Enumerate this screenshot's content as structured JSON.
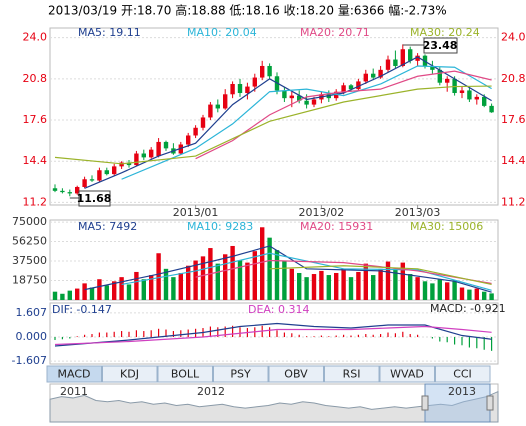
{
  "header": "2013/03/19 开:18.70 高:18.88 低:18.16 收:18.20 量:6366 幅:-2.73%",
  "annotations": [
    "23.48",
    "11.68"
  ],
  "tabs": [
    "MACD",
    "KDJ",
    "BOLL",
    "PSY",
    "OBV",
    "RSI",
    "WVAD",
    "CCI"
  ],
  "navigator": {
    "labels": [
      "2011",
      "2012",
      "2013"
    ],
    "ylim": [
      0,
      30
    ],
    "values": [
      18,
      20,
      19,
      21,
      17,
      16,
      17,
      15,
      16,
      14,
      15,
      13,
      14,
      12,
      13,
      14,
      12,
      11,
      12,
      13,
      15,
      14,
      16,
      15,
      13,
      12,
      11,
      12,
      10,
      11,
      12,
      11,
      12,
      13,
      14,
      13,
      16,
      18,
      20,
      24
    ]
  },
  "chart_data": [
    {
      "type": "candlestick",
      "up_color": "#e60012",
      "down_color": "#00a03c",
      "grid": true,
      "ylim": [
        11,
        24.75
      ],
      "yticks": [
        {
          "value": 24,
          "label": "24.0"
        },
        20.8,
        17.6,
        14.4,
        11.2
      ],
      "categories": [
        null,
        null,
        null,
        null,
        null,
        null,
        null,
        null,
        null,
        null,
        null,
        null,
        null,
        null,
        null,
        null,
        null,
        null,
        null,
        "2013/01",
        null,
        null,
        null,
        null,
        null,
        null,
        null,
        null,
        null,
        null,
        null,
        null,
        null,
        null,
        null,
        null,
        "2013/02",
        null,
        null,
        null,
        null,
        null,
        null,
        null,
        null,
        null,
        null,
        null,
        null,
        "2013/03",
        null,
        null,
        null,
        null,
        null,
        null,
        null,
        null,
        null,
        null
      ],
      "open": [
        12.3,
        12.1,
        12.0,
        11.9,
        12.4,
        13.0,
        12.9,
        13.7,
        13.4,
        14.0,
        14.3,
        14.1,
        15.0,
        14.7,
        14.8,
        15.9,
        15.4,
        15.0,
        15.7,
        16.4,
        17.0,
        17.8,
        18.8,
        18.5,
        19.6,
        20.4,
        19.7,
        20.2,
        20.9,
        21.8,
        21.0,
        19.9,
        19.3,
        19.5,
        19.1,
        18.8,
        19.2,
        19.6,
        19.3,
        19.8,
        20.3,
        20.0,
        20.6,
        21.2,
        20.9,
        21.5,
        22.3,
        21.8,
        23.1,
        22.2,
        22.6,
        21.8,
        21.5,
        20.5,
        20.8,
        19.7,
        19.9,
        19.2,
        19.4,
        18.7
      ],
      "high": [
        12.6,
        12.3,
        12.2,
        12.5,
        13.2,
        13.3,
        13.9,
        13.9,
        14.2,
        14.4,
        14.5,
        15.2,
        15.3,
        15.5,
        16.2,
        16.0,
        15.8,
        15.9,
        16.6,
        17.2,
        18.0,
        19.0,
        19.2,
        20.0,
        20.6,
        20.8,
        20.5,
        21.2,
        22.2,
        22.0,
        21.3,
        20.2,
        19.8,
        19.9,
        19.6,
        19.4,
        19.8,
        19.9,
        20.0,
        20.5,
        20.4,
        20.8,
        21.5,
        21.6,
        21.8,
        22.6,
        23.0,
        23.48,
        23.3,
        22.8,
        22.7,
        22.2,
        21.7,
        21.0,
        21.0,
        20.2,
        20.1,
        19.6,
        19.6,
        18.88
      ],
      "low": [
        12.0,
        11.9,
        11.68,
        11.8,
        12.3,
        12.8,
        12.8,
        13.3,
        13.3,
        13.8,
        13.9,
        14.0,
        14.5,
        14.6,
        14.7,
        15.2,
        14.9,
        14.9,
        15.5,
        16.2,
        16.8,
        17.6,
        18.2,
        18.4,
        19.3,
        19.4,
        19.2,
        19.8,
        20.7,
        20.8,
        19.6,
        19.0,
        18.6,
        18.9,
        18.5,
        18.6,
        18.9,
        19.0,
        19.1,
        19.6,
        19.8,
        19.9,
        20.4,
        20.7,
        20.8,
        21.3,
        21.6,
        21.7,
        22.0,
        21.8,
        21.6,
        21.2,
        20.3,
        19.8,
        19.5,
        19.3,
        19.0,
        18.8,
        18.6,
        18.16
      ],
      "close": [
        12.1,
        12.0,
        11.9,
        12.4,
        13.0,
        12.9,
        13.7,
        13.4,
        14.0,
        14.3,
        14.1,
        15.0,
        14.7,
        15.3,
        15.9,
        15.4,
        15.0,
        15.7,
        16.4,
        17.0,
        17.8,
        18.8,
        18.5,
        19.6,
        20.4,
        19.7,
        20.2,
        20.9,
        21.8,
        21.0,
        19.9,
        19.3,
        19.5,
        19.1,
        18.8,
        19.2,
        19.6,
        19.3,
        19.8,
        20.3,
        20.0,
        20.6,
        21.2,
        20.9,
        21.5,
        22.3,
        21.8,
        23.1,
        22.2,
        22.6,
        21.8,
        21.5,
        20.5,
        20.8,
        19.7,
        19.9,
        19.2,
        19.4,
        18.7,
        18.2
      ],
      "series": [
        {
          "name": "MA5: 19.11",
          "color": "#1f3f8f",
          "x": [
            4,
            9,
            14,
            19,
            24,
            29,
            34,
            39,
            44,
            49,
            54,
            59
          ],
          "values": [
            12.3,
            13.5,
            14.8,
            15.8,
            18.8,
            20.8,
            19.2,
            19.7,
            21.0,
            22.5,
            20.8,
            19.11
          ]
        },
        {
          "name": "MA10: 20.04",
          "color": "#2cb5d8",
          "x": [
            9,
            14,
            19,
            24,
            29,
            34,
            39,
            44,
            49,
            54,
            59
          ],
          "values": [
            13.0,
            14.2,
            15.4,
            17.3,
            19.8,
            20.0,
            19.5,
            20.4,
            21.8,
            21.7,
            20.04
          ]
        },
        {
          "name": "MA20: 20.71",
          "color": "#e04a86",
          "x": [
            19,
            24,
            29,
            34,
            39,
            44,
            49,
            54,
            59
          ],
          "values": [
            14.6,
            16.0,
            18.0,
            19.4,
            19.8,
            20.0,
            21.0,
            21.4,
            20.71
          ]
        },
        {
          "name": "MA30: 20.24",
          "color": "#9bb32a",
          "x": [
            0,
            9,
            19,
            29,
            39,
            49,
            54,
            59
          ],
          "values": [
            14.7,
            14.2,
            14.8,
            17.5,
            19.0,
            20.0,
            20.2,
            20.24
          ]
        }
      ]
    },
    {
      "type": "bar",
      "grid": true,
      "ylim": [
        0,
        77000
      ],
      "yticks": [
        75000,
        56250,
        37500,
        18750
      ],
      "values": [
        8000,
        6000,
        9000,
        11000,
        16000,
        12000,
        20000,
        14000,
        18000,
        22000,
        15000,
        27000,
        20000,
        24000,
        45000,
        30000,
        22000,
        26000,
        33000,
        38000,
        42000,
        50000,
        35000,
        44000,
        52000,
        38000,
        36000,
        47000,
        70000,
        60000,
        48000,
        38000,
        30000,
        26000,
        22000,
        25000,
        28000,
        24000,
        26000,
        30000,
        22000,
        27000,
        35000,
        24000,
        30000,
        37000,
        30000,
        36000,
        25000,
        22000,
        18000,
        16000,
        20000,
        17000,
        19000,
        12000,
        10000,
        11000,
        8000,
        6366
      ],
      "series": [
        {
          "name": "MA5: 7492",
          "color": "#1f3f8f",
          "x": [
            4,
            14,
            24,
            29,
            34,
            44,
            54,
            59
          ],
          "values": [
            10000,
            25000,
            42000,
            52000,
            30000,
            28000,
            18000,
            7492
          ]
        },
        {
          "name": "MA10: 9283",
          "color": "#2cb5d8",
          "x": [
            9,
            19,
            29,
            39,
            49,
            59
          ],
          "values": [
            15000,
            28000,
            45000,
            30000,
            29000,
            9283
          ]
        },
        {
          "name": "MA20: 15931",
          "color": "#e04a86",
          "x": [
            19,
            29,
            39,
            49,
            59
          ],
          "values": [
            22000,
            38000,
            36000,
            28000,
            15931
          ]
        },
        {
          "name": "MA30: 15006",
          "color": "#9bb32a",
          "x": [
            29,
            39,
            49,
            59
          ],
          "values": [
            30000,
            33000,
            30000,
            15006
          ]
        }
      ]
    },
    {
      "type": "macd",
      "grid": true,
      "ylim": [
        -1.8,
        2.27
      ],
      "yticks": [
        1.607,
        {
          "value": 0,
          "label": "0.000"
        },
        -1.607
      ],
      "histogram_name": "MACD: -0.921",
      "values": [
        -0.2,
        -0.15,
        -0.1,
        0.05,
        0.15,
        0.2,
        0.3,
        0.3,
        0.35,
        0.4,
        0.35,
        0.45,
        0.4,
        0.45,
        0.55,
        0.5,
        0.4,
        0.45,
        0.5,
        0.55,
        0.6,
        0.7,
        0.65,
        0.7,
        0.75,
        0.65,
        0.6,
        0.65,
        0.75,
        0.65,
        0.45,
        0.3,
        0.25,
        0.15,
        0.05,
        0.05,
        0.1,
        0.05,
        0.1,
        0.15,
        0.1,
        0.15,
        0.2,
        0.15,
        0.2,
        0.3,
        0.25,
        0.35,
        0.2,
        0.15,
        0.0,
        -0.1,
        -0.3,
        -0.35,
        -0.5,
        -0.55,
        -0.7,
        -0.75,
        -0.85,
        -0.921
      ],
      "series": [
        {
          "name": "DIF: -0.147",
          "color": "#1f3f8f",
          "x": [
            0,
            10,
            20,
            25,
            30,
            35,
            40,
            45,
            50,
            55,
            59
          ],
          "values": [
            -0.6,
            -0.2,
            0.3,
            0.7,
            0.9,
            0.7,
            0.6,
            0.8,
            0.8,
            0.1,
            -0.147
          ]
        },
        {
          "name": "DEA: 0.314",
          "color": "#d040c0",
          "x": [
            0,
            10,
            20,
            30,
            40,
            45,
            50,
            55,
            59
          ],
          "values": [
            -0.5,
            -0.3,
            0.0,
            0.5,
            0.5,
            0.6,
            0.7,
            0.5,
            0.314
          ]
        }
      ]
    }
  ]
}
